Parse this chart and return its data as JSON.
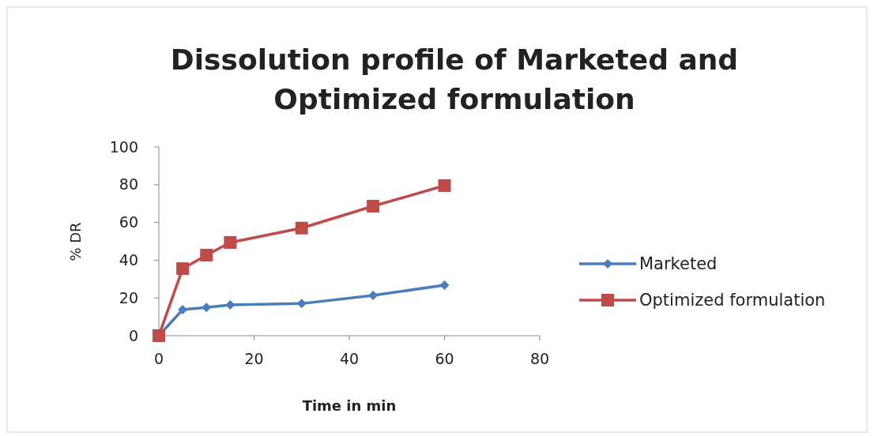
{
  "chart_data": {
    "type": "line",
    "title": "Dissolution profile of Marketed and Optimized formulation",
    "xlabel": "Time in min",
    "ylabel": "% DR",
    "x": [
      0,
      5,
      10,
      15,
      30,
      45,
      60
    ],
    "series": [
      {
        "name": "Marketed",
        "color": "#4a7ebb",
        "marker": "diamond",
        "values": [
          0,
          13.8,
          15,
          16.3,
          17,
          21.3,
          26.8
        ]
      },
      {
        "name": "Optimized formulation",
        "color": "#be4b48",
        "marker": "square",
        "values": [
          0,
          35.5,
          42.7,
          49.4,
          57,
          68.6,
          79.5
        ]
      }
    ],
    "xlim": [
      0,
      80
    ],
    "xticks": [
      0,
      20,
      40,
      60,
      80
    ],
    "ylim": [
      0,
      100
    ],
    "yticks": [
      0,
      20,
      40,
      60,
      80,
      100
    ],
    "grid": false,
    "legend": "right"
  }
}
